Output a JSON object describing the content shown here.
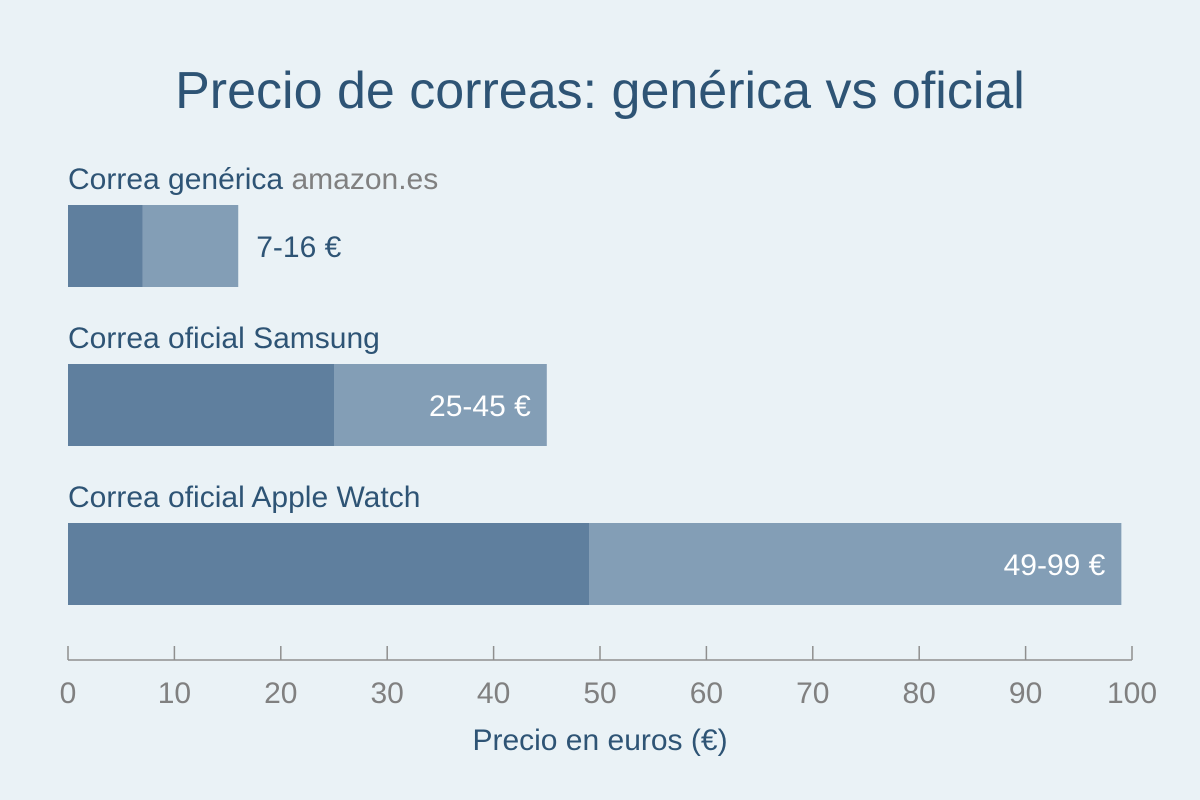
{
  "chart_data": {
    "type": "bar",
    "title": "Precio de correas: genérica vs oficial",
    "xlabel": "Precio en euros (€)",
    "ylabel": "",
    "xlim": [
      0,
      100
    ],
    "x_ticks": [
      0,
      10,
      20,
      30,
      40,
      50,
      60,
      70,
      80,
      90,
      100
    ],
    "x_tick_labels": [
      "0",
      "10",
      "20",
      "30",
      "40",
      "50",
      "60",
      "70",
      "80",
      "90",
      "100"
    ],
    "grid": false,
    "orientation": "horizontal",
    "categories": [
      {
        "label": "Correa genérica",
        "source": "amazon.es",
        "min": 7,
        "max": 16,
        "value_label": "7-16 €"
      },
      {
        "label": "Correa oficial Samsung",
        "source": "",
        "min": 25,
        "max": 45,
        "value_label": "25-45 €"
      },
      {
        "label": "Correa oficial Apple Watch",
        "source": "",
        "min": 49,
        "max": 99,
        "value_label": "49-99 €"
      }
    ],
    "colors": {
      "background": "#eaf2f6",
      "title": "#2e5475",
      "category_label": "#2e5475",
      "source_label": "#808080",
      "bar_low": "#5f7f9e",
      "bar_high": "#839eb6",
      "value_outside": "#2e5475",
      "value_inside": "#ffffff",
      "axis": "#8f8f8f",
      "tick_label": "#808080",
      "xlabel": "#2e5475"
    }
  }
}
